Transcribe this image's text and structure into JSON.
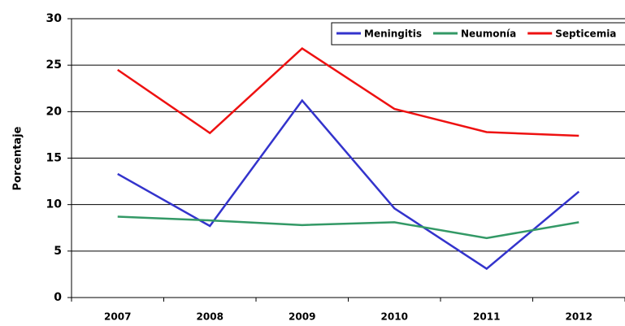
{
  "chart_data": {
    "type": "line",
    "y_label": "Porcentaje",
    "categories": [
      "2007",
      "2008",
      "2009",
      "2010",
      "2011",
      "2012"
    ],
    "series": [
      {
        "name": "Meningitis",
        "color": "#3333cc",
        "values": [
          13.3,
          7.7,
          21.2,
          9.6,
          3.1,
          11.4
        ]
      },
      {
        "name": "Neumonía",
        "color": "#339966",
        "values": [
          8.7,
          8.3,
          7.8,
          8.1,
          6.4,
          8.1
        ]
      },
      {
        "name": "Septicemia",
        "color": "#ee1111",
        "values": [
          24.5,
          17.7,
          26.8,
          20.3,
          17.8,
          17.4
        ]
      }
    ],
    "ylim": [
      0,
      30
    ],
    "yticks": [
      0,
      5,
      10,
      15,
      20,
      25,
      30
    ],
    "grid": true
  }
}
